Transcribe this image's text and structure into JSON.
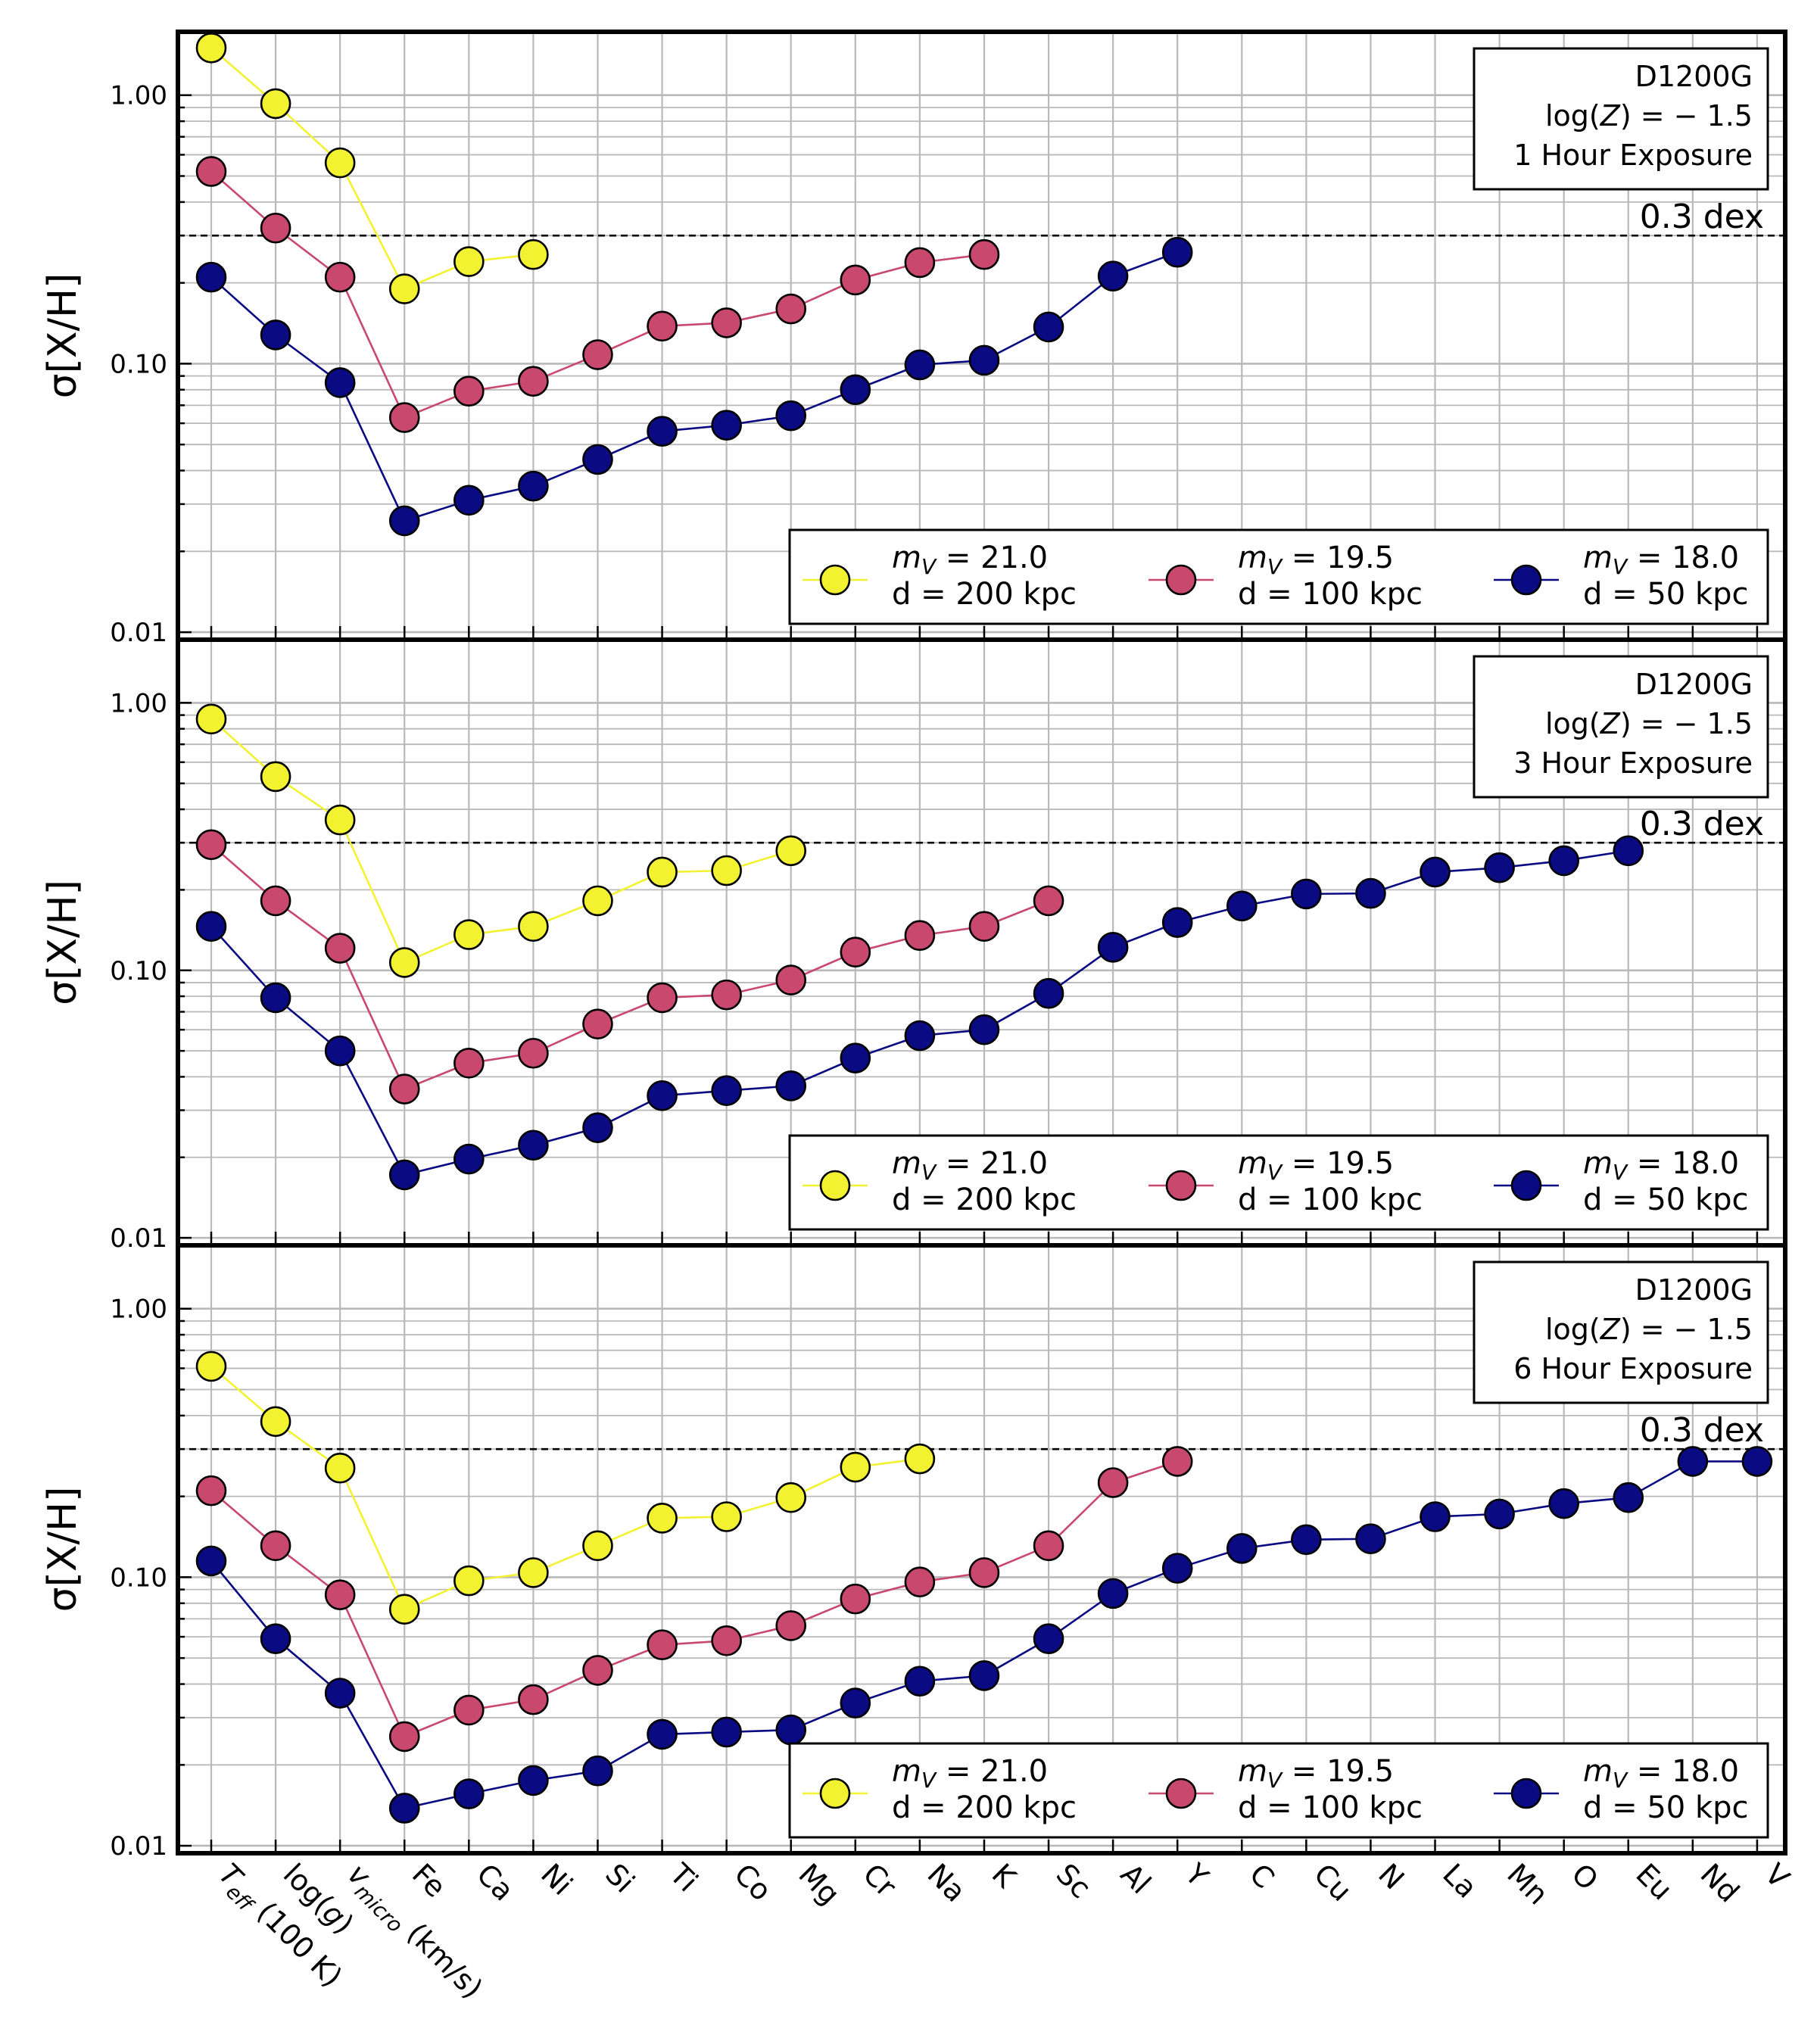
{
  "chart_data": {
    "type": "line",
    "y_scale": "log",
    "ylim": [
      0.0095,
      1.7
    ],
    "ylabel": "σ[X/H]",
    "yticks": [
      1.0,
      0.1,
      0.01
    ],
    "ytick_labels": [
      "1.00",
      "0.10",
      "0.01"
    ],
    "grid": true,
    "categories": [
      "T_eff (100 K)",
      "log(g)",
      "v_micro (km/s)",
      "Fe",
      "Ca",
      "Ni",
      "Si",
      "Ti",
      "Co",
      "Mg",
      "Cr",
      "Na",
      "K",
      "Sc",
      "Al",
      "Y",
      "C",
      "Cu",
      "N",
      "La",
      "Mn",
      "O",
      "Eu",
      "Nd",
      "V"
    ],
    "category_labels": [
      {
        "main": "T",
        "sub": "eff",
        "rest": " (100 K)"
      },
      {
        "main": "log(",
        "italic": "g",
        "rest": ")"
      },
      {
        "main": "v",
        "sub": "micro",
        "rest": " (km/s)"
      },
      {
        "main": "Fe"
      },
      {
        "main": "Ca"
      },
      {
        "main": "Ni"
      },
      {
        "main": "Si"
      },
      {
        "main": "Ti"
      },
      {
        "main": "Co"
      },
      {
        "main": "Mg"
      },
      {
        "main": "Cr"
      },
      {
        "main": "Na"
      },
      {
        "main": "K"
      },
      {
        "main": "Sc"
      },
      {
        "main": "Al"
      },
      {
        "main": "Y"
      },
      {
        "main": "C"
      },
      {
        "main": "Cu"
      },
      {
        "main": "N"
      },
      {
        "main": "La"
      },
      {
        "main": "Mn"
      },
      {
        "main": "O"
      },
      {
        "main": "Eu"
      },
      {
        "main": "Nd"
      },
      {
        "main": "V"
      }
    ],
    "threshold": {
      "value": 0.3,
      "label": "0.3 dex"
    },
    "legend": {
      "placement": "lower-right",
      "entries": [
        {
          "mag_prefix": "m",
          "mag_sub": "V",
          "mag_value": "=  21.0",
          "distance": "d = 200 kpc",
          "color": "#f2f230"
        },
        {
          "mag_prefix": "m",
          "mag_sub": "V",
          "mag_value": "=  19.5",
          "distance": "d = 100 kpc",
          "color": "#c9486e"
        },
        {
          "mag_prefix": "m",
          "mag_sub": "V",
          "mag_value": "=  18.0",
          "distance": "d = 50 kpc",
          "color": "#0a0a82"
        }
      ]
    },
    "panels": [
      {
        "info": [
          "D1200G",
          "log(Z) = − 1.5",
          "1 Hour Exposure"
        ],
        "series": [
          {
            "name": "d = 200 kpc",
            "color": "#f2f230",
            "values": [
              1.5,
              0.93,
              0.56,
              0.19,
              0.24,
              0.255
            ]
          },
          {
            "name": "d = 100 kpc",
            "color": "#c9486e",
            "values": [
              0.52,
              0.32,
              0.21,
              0.063,
              0.079,
              0.086,
              0.108,
              0.138,
              0.142,
              0.16,
              0.205,
              0.238,
              0.255
            ]
          },
          {
            "name": "d = 50 kpc",
            "color": "#0a0a82",
            "values": [
              0.21,
              0.128,
              0.085,
              0.026,
              0.031,
              0.035,
              0.044,
              0.056,
              0.059,
              0.064,
              0.08,
              0.099,
              0.103,
              0.137,
              0.212,
              0.26
            ]
          }
        ]
      },
      {
        "info": [
          "D1200G",
          "log(Z) = − 1.5",
          "3 Hour Exposure"
        ],
        "series": [
          {
            "name": "d = 200 kpc",
            "color": "#f2f230",
            "values": [
              0.87,
              0.53,
              0.365,
              0.107,
              0.136,
              0.146,
              0.182,
              0.233,
              0.236,
              0.28
            ]
          },
          {
            "name": "d = 100 kpc",
            "color": "#c9486e",
            "values": [
              0.295,
              0.182,
              0.121,
              0.036,
              0.045,
              0.049,
              0.063,
              0.079,
              0.081,
              0.092,
              0.117,
              0.135,
              0.146,
              0.182
            ]
          },
          {
            "name": "d = 50 kpc",
            "color": "#0a0a82",
            "values": [
              0.146,
              0.079,
              0.05,
              0.0172,
              0.0197,
              0.0222,
              0.0258,
              0.034,
              0.0355,
              0.037,
              0.047,
              0.057,
              0.06,
              0.082,
              0.122,
              0.151,
              0.174,
              0.193,
              0.194,
              0.233,
              0.242,
              0.257,
              0.28
            ]
          }
        ]
      },
      {
        "info": [
          "D1200G",
          "log(Z) = − 1.5",
          "6 Hour Exposure"
        ],
        "series": [
          {
            "name": "d = 200 kpc",
            "color": "#f2f230",
            "values": [
              0.61,
              0.38,
              0.255,
              0.076,
              0.097,
              0.104,
              0.131,
              0.166,
              0.168,
              0.198,
              0.257,
              0.276
            ]
          },
          {
            "name": "d = 100 kpc",
            "color": "#c9486e",
            "values": [
              0.21,
              0.131,
              0.086,
              0.0255,
              0.032,
              0.035,
              0.045,
              0.056,
              0.058,
              0.066,
              0.083,
              0.096,
              0.104,
              0.131,
              0.225,
              0.27
            ]
          },
          {
            "name": "d = 50 kpc",
            "color": "#0a0a82",
            "values": [
              0.115,
              0.059,
              0.037,
              0.0138,
              0.0156,
              0.0175,
              0.019,
              0.026,
              0.0265,
              0.027,
              0.034,
              0.041,
              0.043,
              0.059,
              0.087,
              0.108,
              0.128,
              0.138,
              0.139,
              0.168,
              0.172,
              0.188,
              0.198,
              0.27,
              0.27
            ]
          }
        ]
      }
    ]
  }
}
